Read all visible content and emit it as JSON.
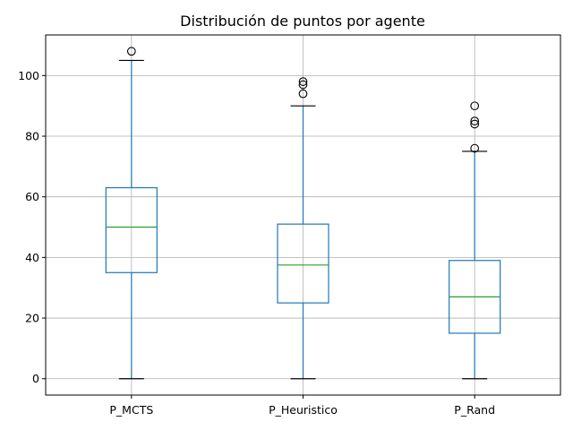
{
  "chart_data": {
    "type": "box",
    "title": "Distribución de puntos por agente",
    "xlabel": "",
    "ylabel": "",
    "ylim": [
      -5.4,
      113.4
    ],
    "yticks": [
      0,
      20,
      40,
      60,
      80,
      100
    ],
    "grid": true,
    "colors": {
      "box": "#1f77b4",
      "median": "#2ca02c",
      "whisker_cap": "#000000",
      "flier": "#000000",
      "grid": "#b0b0b0"
    },
    "categories": [
      "P_MCTS",
      "P_Heuristico",
      "P_Rand"
    ],
    "series": [
      {
        "category": "P_MCTS",
        "whislo": 0,
        "q1": 35,
        "median": 50,
        "q3": 63,
        "whishi": 105,
        "fliers": [
          108
        ]
      },
      {
        "category": "P_Heuristico",
        "whislo": 0,
        "q1": 25,
        "median": 37.5,
        "q3": 51,
        "whishi": 90,
        "fliers": [
          94,
          97,
          98
        ]
      },
      {
        "category": "P_Rand",
        "whislo": 0,
        "q1": 15,
        "median": 27,
        "q3": 39,
        "whishi": 75,
        "fliers": [
          76,
          84,
          85,
          90
        ]
      }
    ]
  }
}
